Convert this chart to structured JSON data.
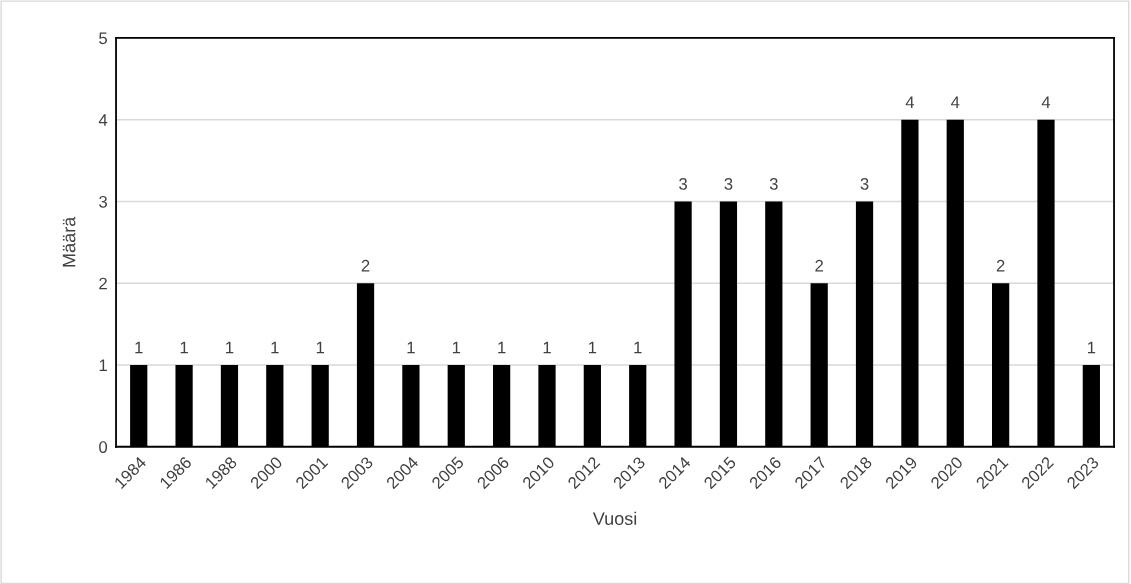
{
  "chart_data": {
    "type": "bar",
    "xlabel": "Vuosi",
    "ylabel": "Määrä",
    "categories": [
      "1984",
      "1986",
      "1988",
      "2000",
      "2001",
      "2003",
      "2004",
      "2005",
      "2006",
      "2010",
      "2012",
      "2013",
      "2014",
      "2015",
      "2016",
      "2017",
      "2018",
      "2019",
      "2020",
      "2021",
      "2022",
      "2023"
    ],
    "values": [
      1,
      1,
      1,
      1,
      1,
      2,
      1,
      1,
      1,
      1,
      1,
      1,
      3,
      3,
      3,
      2,
      3,
      4,
      4,
      2,
      4,
      1
    ],
    "color": "#000000",
    "ylim": [
      0,
      5
    ],
    "yticks": [
      0,
      1,
      2,
      3,
      4,
      5
    ],
    "grid": "y",
    "data_labels": true,
    "legend": false
  }
}
